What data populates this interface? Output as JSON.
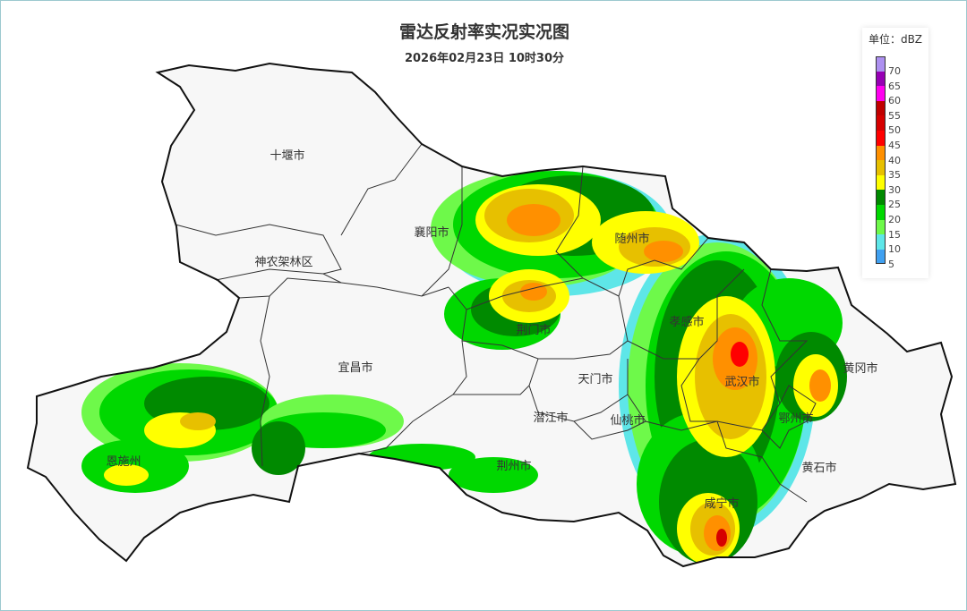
{
  "title": "雷达反射率实况实况图",
  "subtitle": "2026年02月23日 10时30分",
  "legend": {
    "title": "单位：dBZ",
    "bins": [
      {
        "label": "70",
        "color": "#ad90f0"
      },
      {
        "label": "65",
        "color": "#9600b4"
      },
      {
        "label": "60",
        "color": "#ff00f0"
      },
      {
        "label": "55",
        "color": "#c00000"
      },
      {
        "label": "50",
        "color": "#d60000"
      },
      {
        "label": "45",
        "color": "#ff0000"
      },
      {
        "label": "40",
        "color": "#ff9000"
      },
      {
        "label": "35",
        "color": "#e7c000"
      },
      {
        "label": "30",
        "color": "#ffff00"
      },
      {
        "label": "25",
        "color": "#008a00"
      },
      {
        "label": "20",
        "color": "#00d800"
      },
      {
        "label": "15",
        "color": "#6ef94a"
      },
      {
        "label": "10",
        "color": "#5ee6e8"
      },
      {
        "label": "5",
        "color": "#40a0f0"
      }
    ]
  },
  "cities": [
    {
      "name": "十堰市"
    },
    {
      "name": "襄阳市"
    },
    {
      "name": "神农架林区"
    },
    {
      "name": "随州市"
    },
    {
      "name": "荆门市"
    },
    {
      "name": "孝感市"
    },
    {
      "name": "宜昌市"
    },
    {
      "name": "天门市"
    },
    {
      "name": "武汉市"
    },
    {
      "name": "黄冈市"
    },
    {
      "name": "潜江市"
    },
    {
      "name": "仙桃市"
    },
    {
      "name": "鄂州市"
    },
    {
      "name": "恩施州"
    },
    {
      "name": "荆州市"
    },
    {
      "name": "黄石市"
    },
    {
      "name": "咸宁市"
    }
  ]
}
